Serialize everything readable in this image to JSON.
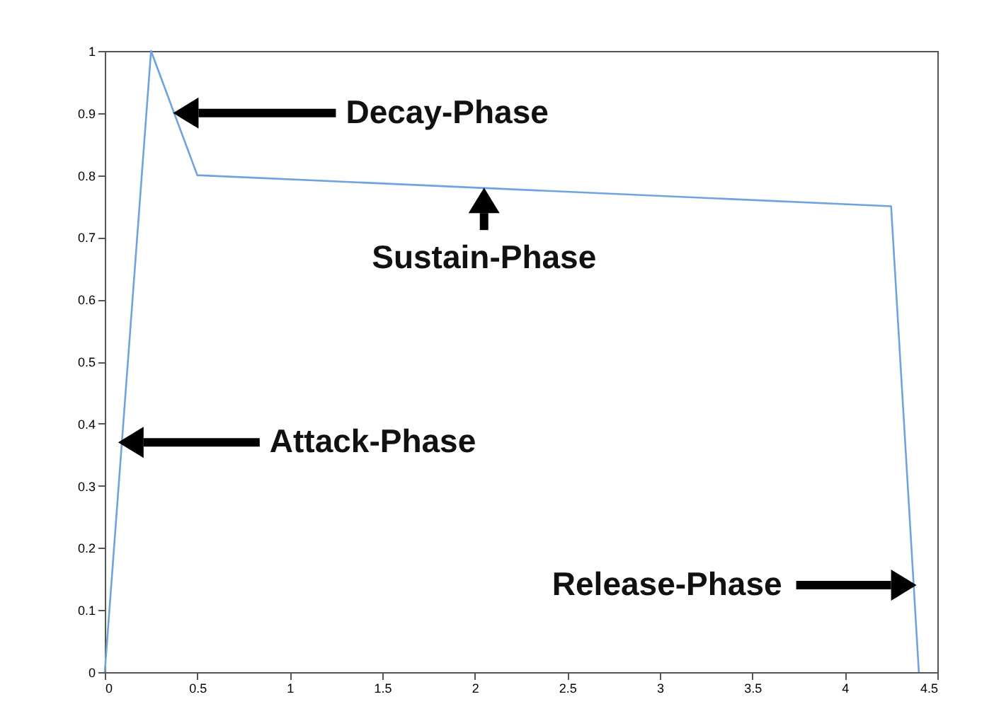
{
  "chart_data": {
    "type": "line",
    "x": [
      0,
      0.25,
      0.5,
      4.25,
      4.4
    ],
    "series": [
      {
        "color": "#6fa3e0",
        "values": [
          0,
          1,
          0.8,
          0.75,
          0
        ]
      }
    ],
    "xlim": [
      0,
      4.5
    ],
    "xticks": [
      0,
      0.5,
      1,
      1.5,
      2,
      2.5,
      3,
      3.5,
      4,
      4.5
    ],
    "ylim": [
      0,
      1
    ],
    "yticks": [
      0,
      0.1,
      0.2,
      0.3,
      0.4,
      0.5,
      0.6,
      0.7,
      0.8,
      0.9,
      1
    ],
    "grid": false,
    "legend": false,
    "annotations": [
      "Decay-Phase",
      {
        "text": "Sustain-Phase",
        "x": 2.05,
        "y": 0.78
      },
      "Attack-Phase",
      "Release-Phase"
    ]
  }
}
